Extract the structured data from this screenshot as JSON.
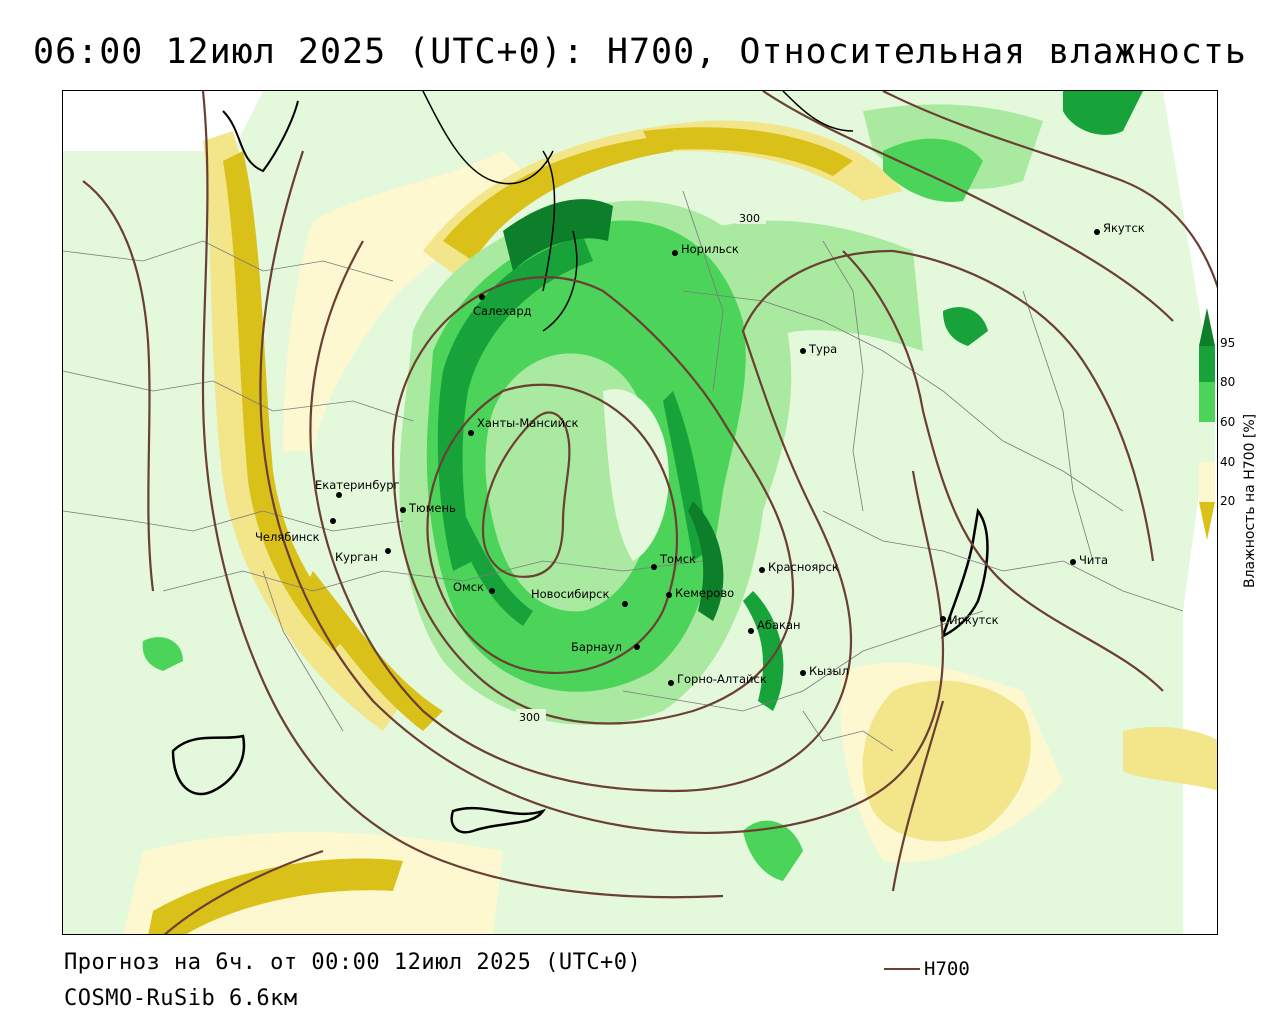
{
  "title": "06:00 12июл 2025 (UTC+0): H700, Относительная влажность",
  "footer": {
    "forecast": "Прогноз на 6ч. от 00:00 12июл 2025 (UTC+0)",
    "model": "COSMO-RuSib 6.6км",
    "legend_label": "H700"
  },
  "colorbar": {
    "title": "Влажность на H700 [%]",
    "ticks": [
      "95",
      "80",
      "60",
      "40",
      "20"
    ],
    "colors": {
      "dry": "#d9c11a",
      "low": "#f3e58a",
      "mid_low": "#fdf8cf",
      "mid": "#e4f8dc",
      "mid_high": "#a9eaa0",
      "high": "#4cd45a",
      "very_high": "#17a33a",
      "saturated": "#0d7f2a"
    }
  },
  "contours": {
    "color": "#6b3f32",
    "labels": [
      "300",
      "300"
    ]
  },
  "cities": [
    {
      "name": "Якутск"
    },
    {
      "name": "Норильск"
    },
    {
      "name": "Салехард"
    },
    {
      "name": "Тура"
    },
    {
      "name": "Ханты-Мансийск"
    },
    {
      "name": "Екатеринбург"
    },
    {
      "name": "Тюмень"
    },
    {
      "name": "Челябинск"
    },
    {
      "name": "Курган"
    },
    {
      "name": "Томск"
    },
    {
      "name": "Красноярск"
    },
    {
      "name": "Омск"
    },
    {
      "name": "Новосибирск"
    },
    {
      "name": "Кемерово"
    },
    {
      "name": "Абакан"
    },
    {
      "name": "Барнаул"
    },
    {
      "name": "Иркутск"
    },
    {
      "name": "Чита"
    },
    {
      "name": "Кызыл"
    },
    {
      "name": "Горно-Алтайск"
    }
  ]
}
